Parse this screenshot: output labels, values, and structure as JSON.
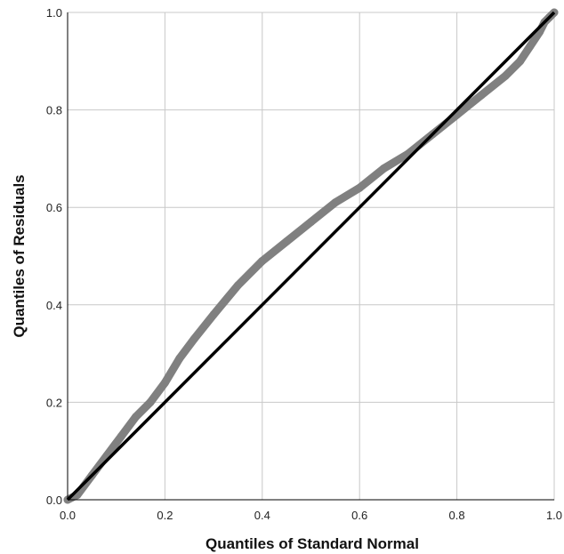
{
  "chart_data": {
    "type": "scatter",
    "title": "",
    "xlabel": "Quantiles of Standard Normal",
    "ylabel": "Quantiles of Residuals",
    "xlim": [
      0.0,
      1.0
    ],
    "ylim": [
      0.0,
      1.0
    ],
    "x_ticks": [
      "0.0",
      "0.2",
      "0.4",
      "0.6",
      "0.8",
      "1.0"
    ],
    "y_ticks": [
      "0.0",
      "0.2",
      "0.4",
      "0.6",
      "0.8",
      "1.0"
    ],
    "grid": true,
    "legend": "none",
    "series": [
      {
        "style": "thick-points",
        "color": "#808080",
        "x": [
          0.0,
          0.02,
          0.05,
          0.08,
          0.11,
          0.14,
          0.17,
          0.2,
          0.23,
          0.26,
          0.3,
          0.35,
          0.4,
          0.45,
          0.5,
          0.55,
          0.6,
          0.65,
          0.7,
          0.75,
          0.8,
          0.85,
          0.9,
          0.93,
          0.95,
          0.97,
          0.98,
          0.99,
          1.0
        ],
        "y": [
          0.0,
          0.01,
          0.05,
          0.09,
          0.13,
          0.17,
          0.2,
          0.24,
          0.29,
          0.33,
          0.38,
          0.44,
          0.49,
          0.53,
          0.57,
          0.61,
          0.64,
          0.68,
          0.71,
          0.75,
          0.79,
          0.83,
          0.87,
          0.9,
          0.93,
          0.96,
          0.98,
          0.99,
          1.0
        ]
      },
      {
        "style": "reference-line",
        "color": "#000000",
        "x": [
          0.0,
          1.0
        ],
        "y": [
          0.0,
          1.0
        ]
      }
    ]
  }
}
